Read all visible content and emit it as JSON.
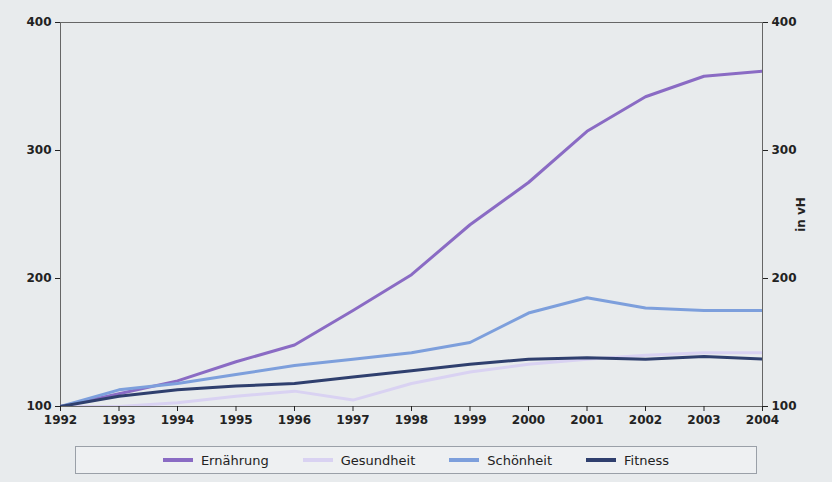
{
  "chart_data": {
    "type": "line",
    "x": [
      1992,
      1993,
      1994,
      1995,
      1996,
      1997,
      1998,
      1999,
      2000,
      2001,
      2002,
      2003,
      2004
    ],
    "xlim": [
      1992,
      2004
    ],
    "xticks": [
      1992,
      1993,
      1994,
      1995,
      1996,
      1997,
      1998,
      1999,
      2000,
      2001,
      2002,
      2003,
      2004
    ],
    "ylim": [
      100,
      400
    ],
    "yticks": [
      100,
      200,
      300,
      400
    ],
    "ylabel": "in vH",
    "grid": false,
    "legend": "bottom",
    "series": [
      {
        "name": "Ernährung",
        "color": "#8a6bc4",
        "values": [
          100,
          110,
          120,
          135,
          148,
          175,
          203,
          242,
          275,
          315,
          342,
          358,
          362
        ]
      },
      {
        "name": "Gesundheit",
        "color": "#d9d2f2",
        "values": [
          100,
          100,
          103,
          108,
          112,
          105,
          118,
          127,
          133,
          137,
          140,
          142,
          142
        ]
      },
      {
        "name": "Schönheit",
        "color": "#7d9fdc",
        "values": [
          100,
          113,
          118,
          125,
          132,
          137,
          142,
          150,
          173,
          185,
          177,
          175,
          175
        ]
      },
      {
        "name": "Fitness",
        "color": "#2f3f6e",
        "values": [
          100,
          108,
          113,
          116,
          118,
          123,
          128,
          133,
          137,
          138,
          137,
          139,
          137
        ]
      }
    ]
  }
}
